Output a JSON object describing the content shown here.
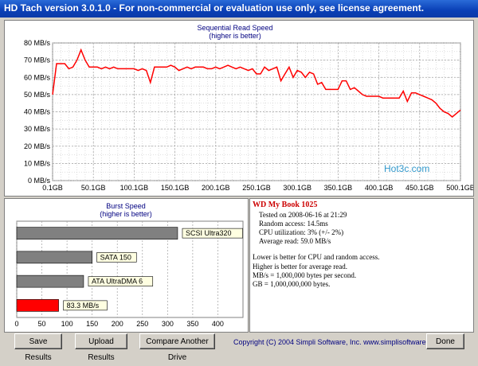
{
  "window": {
    "title": "HD Tach version 3.0.1.0  - For non-commercial or evaluation use only, see license agreement."
  },
  "sequential": {
    "title": "Sequential Read Speed",
    "subtitle": "(higher is better)",
    "watermark": "Hot3c.com"
  },
  "burst": {
    "title": "Burst Speed",
    "subtitle": "(higher is better)"
  },
  "info": {
    "drive_name": "WD My Book 1025",
    "tested_on": "Tested on 2008-06-16 at 21:29",
    "random_access": "Random access: 14.5ms",
    "cpu": "CPU utilization: 3% (+/- 2%)",
    "average_read": "Average read: 59.0 MB/s",
    "note1": "Lower is better for CPU and random access.",
    "note2": "Higher is better for average read.",
    "note3": "MB/s = 1,000,000 bytes per second.",
    "note4": "GB = 1,000,000,000 bytes."
  },
  "buttons": {
    "save": "Save Results",
    "upload": "Upload Results",
    "compare": "Compare Another Drive",
    "done": "Done"
  },
  "copyright": "Copyright (C) 2004 Simpli Software, Inc. www.simplisoftware.com",
  "colors": {
    "accent": "#ff0000",
    "title_bar": "#0a3fb6",
    "bar_gray": "#808080"
  },
  "chart_data": [
    {
      "type": "line",
      "title": "Sequential Read Speed",
      "subtitle": "(higher is better)",
      "xlabel": "",
      "ylabel": "",
      "x_ticks": [
        "0.1GB",
        "50.1GB",
        "100.1GB",
        "150.1GB",
        "200.1GB",
        "250.1GB",
        "300.1GB",
        "350.1GB",
        "400.1GB",
        "450.1GB",
        "500.1GB"
      ],
      "y_ticks": [
        "0 MB/s",
        "10 MB/s",
        "20 MB/s",
        "30 MB/s",
        "40 MB/s",
        "50 MB/s",
        "60 MB/s",
        "70 MB/s",
        "80 MB/s"
      ],
      "xlim": [
        0.1,
        500.1
      ],
      "ylim": [
        0,
        80
      ],
      "grid": true,
      "series": [
        {
          "color": "#ff0000",
          "x": [
            0.1,
            5,
            10,
            15,
            20,
            25,
            30,
            35,
            40,
            45,
            50,
            55,
            60,
            65,
            70,
            75,
            80,
            85,
            90,
            95,
            100,
            105,
            110,
            115,
            120,
            125,
            130,
            135,
            140,
            145,
            150,
            155,
            160,
            165,
            170,
            175,
            180,
            185,
            190,
            195,
            200,
            205,
            210,
            215,
            220,
            225,
            230,
            235,
            240,
            245,
            250,
            255,
            260,
            265,
            270,
            275,
            280,
            285,
            290,
            295,
            300,
            305,
            310,
            315,
            320,
            325,
            330,
            335,
            340,
            345,
            350,
            355,
            360,
            365,
            370,
            375,
            380,
            385,
            390,
            395,
            400,
            405,
            410,
            415,
            420,
            425,
            430,
            435,
            440,
            445,
            450,
            455,
            460,
            465,
            470,
            475,
            480,
            485,
            490,
            495,
            500.1
          ],
          "values": [
            50,
            68,
            68,
            68,
            65,
            66,
            70,
            76,
            70,
            66,
            66,
            66,
            65,
            66,
            65,
            66,
            65,
            65,
            65,
            65,
            65,
            64,
            65,
            64,
            57,
            66,
            66,
            66,
            66,
            67,
            66,
            64,
            65,
            66,
            65,
            66,
            66,
            66,
            65,
            65,
            66,
            65,
            66,
            67,
            66,
            65,
            66,
            65,
            64,
            65,
            62,
            62,
            66,
            64,
            65,
            66,
            58,
            62,
            66,
            60,
            64,
            63,
            60,
            63,
            62,
            56,
            57,
            53,
            53,
            53,
            53,
            58,
            58,
            53,
            54,
            52,
            50,
            49,
            49,
            49,
            49,
            48,
            48,
            48,
            48,
            48,
            52,
            46,
            51,
            51,
            50,
            49,
            48,
            47,
            45,
            42,
            40,
            39,
            37,
            39,
            41
          ]
        }
      ]
    },
    {
      "type": "bar",
      "title": "Burst Speed",
      "subtitle": "(higher is better)",
      "orientation": "horizontal",
      "xlim": [
        0,
        450
      ],
      "x_ticks": [
        "0",
        "50",
        "100",
        "150",
        "200",
        "250",
        "300",
        "350",
        "400"
      ],
      "grid": true,
      "categories": [
        "SCSI Ultra320",
        "SATA 150",
        "ATA UltraDMA 6",
        "83.3 MB/s"
      ],
      "values": [
        320,
        150,
        133,
        83.3
      ],
      "bar_colors": [
        "#808080",
        "#808080",
        "#808080",
        "#ff0000"
      ]
    }
  ]
}
